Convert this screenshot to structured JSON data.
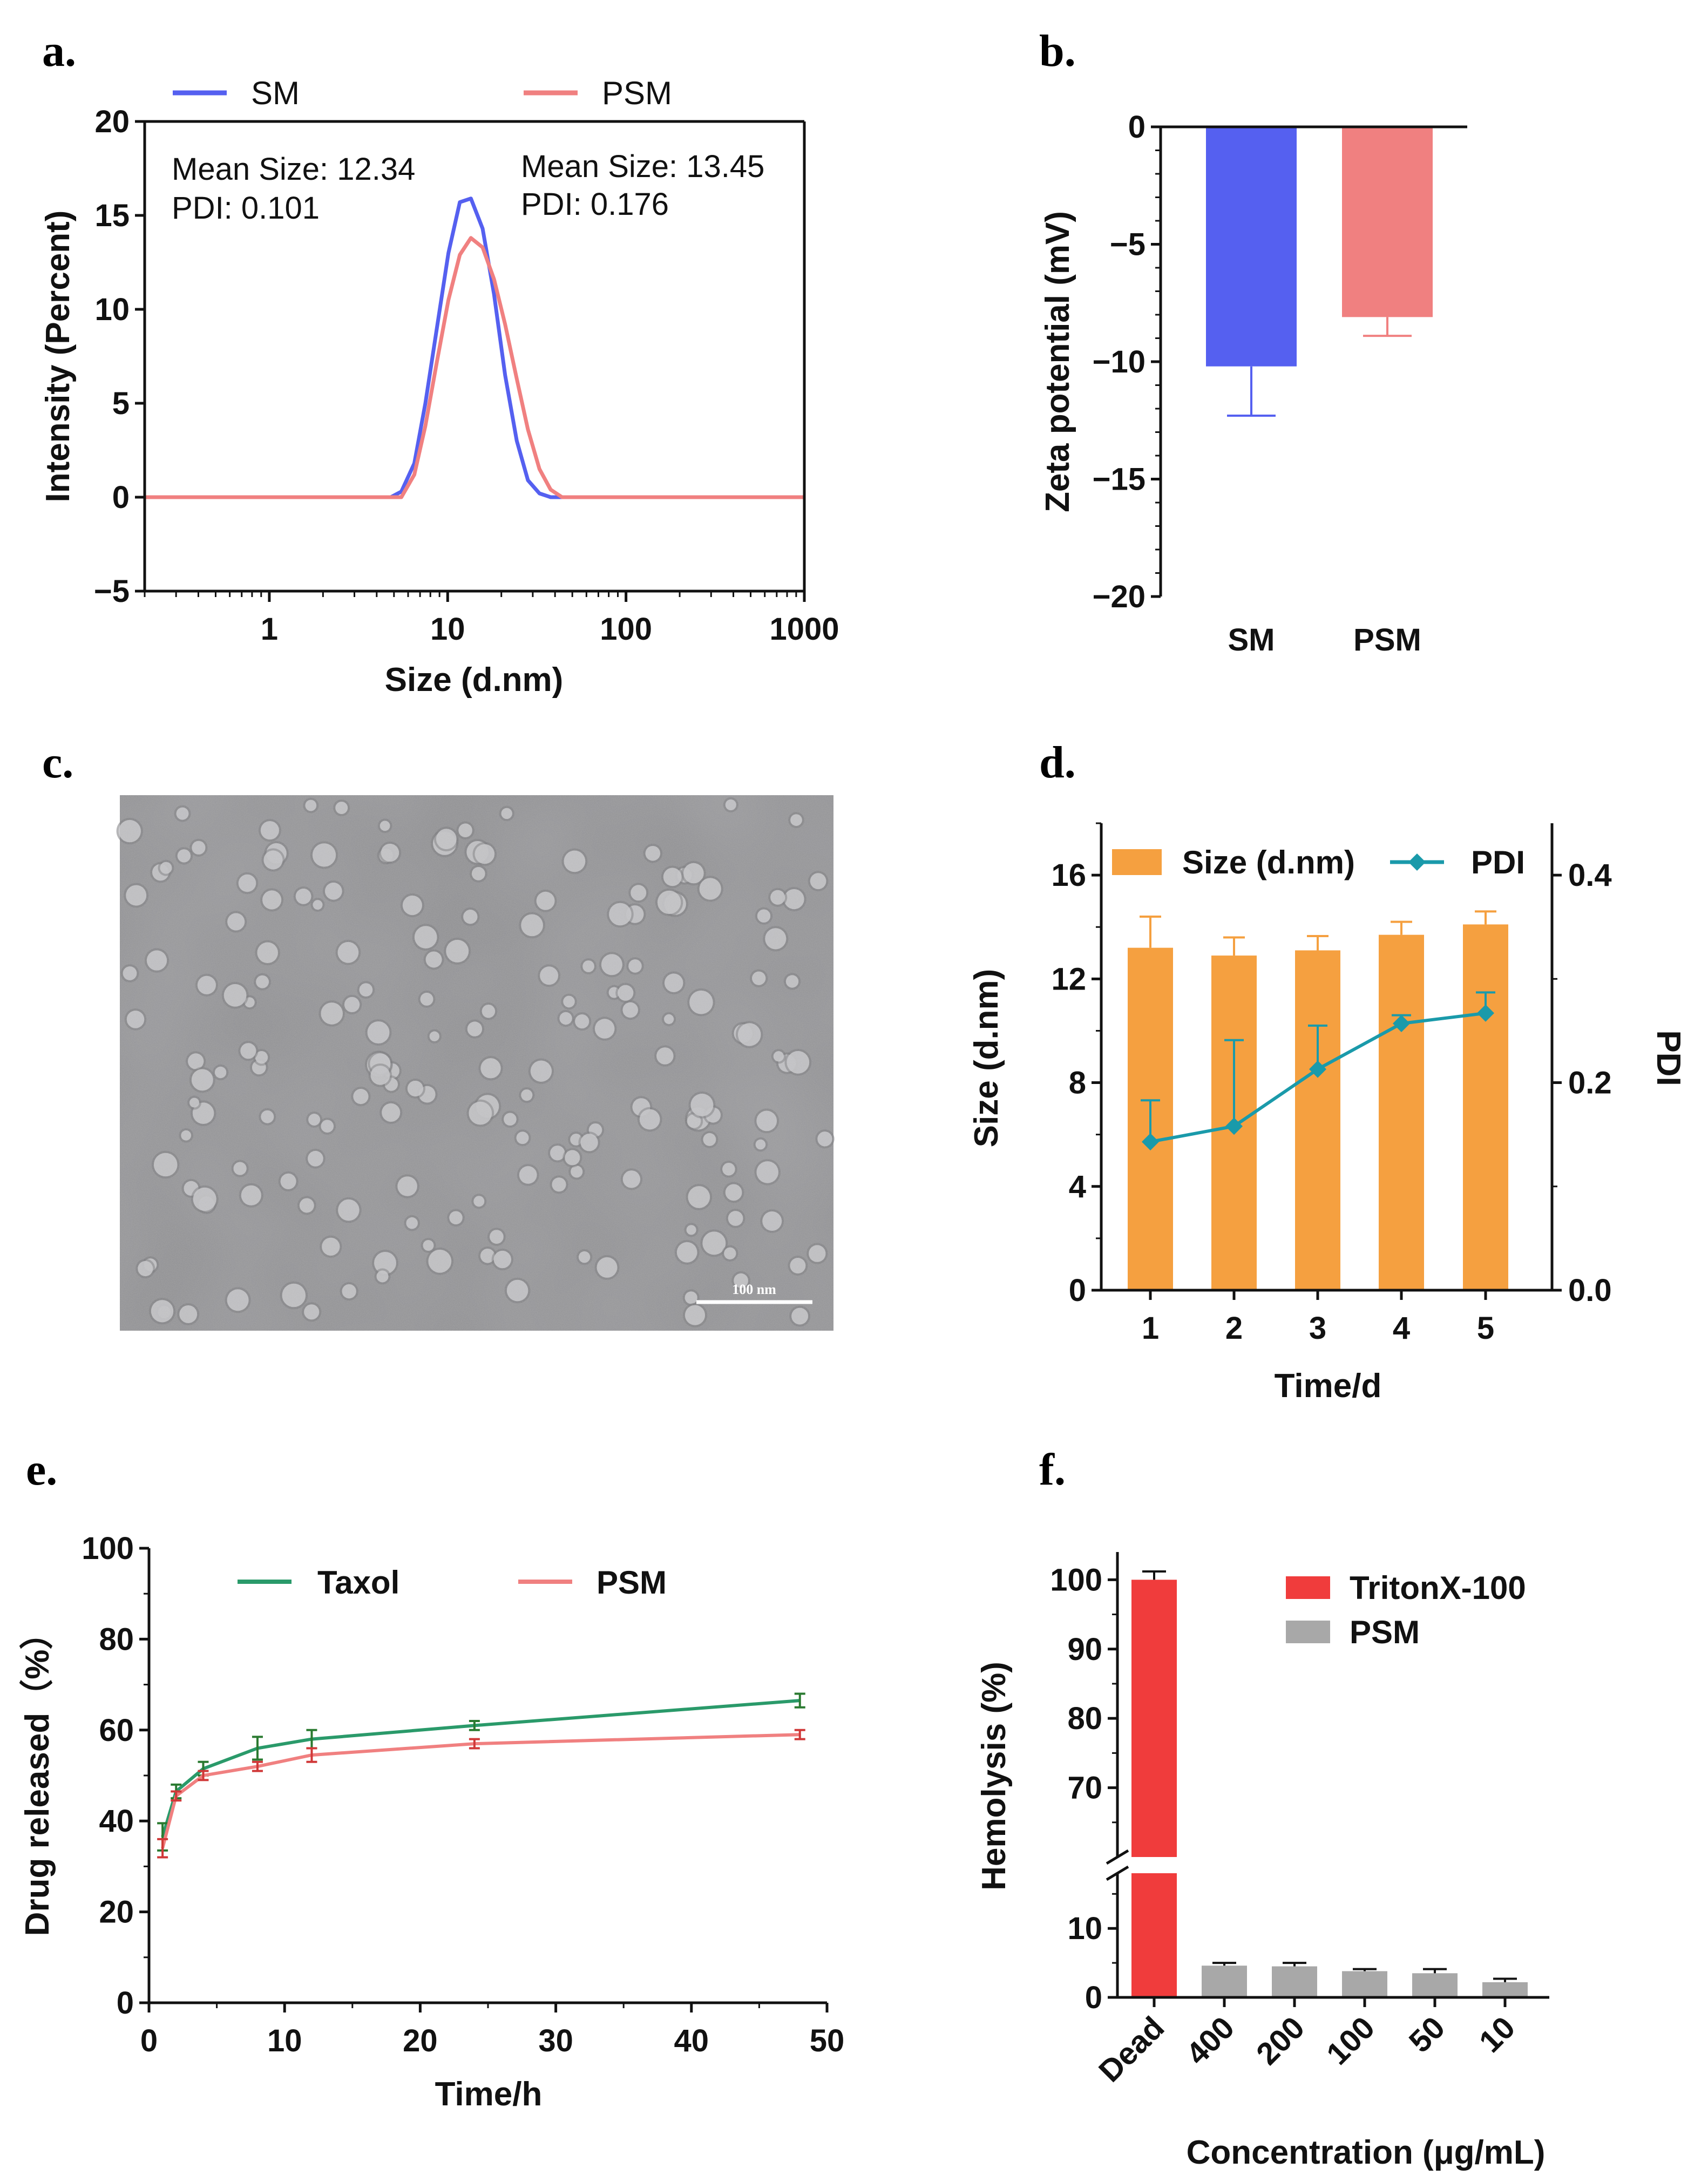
{
  "colors": {
    "sm_blue": "#5560f0",
    "psm_pink": "#f08080",
    "orange": "#f5a040",
    "teal": "#1a9aaa",
    "taxol_green": "#2a9a6a",
    "triton_red": "#f03c3c",
    "psm_gray": "#a8a8a8"
  },
  "chart_data": [
    {
      "id": "a",
      "panel_label": "a.",
      "type": "line",
      "xlabel": "Size (d.nm)",
      "ylabel": "Intensity (Percent)",
      "xscale": "log",
      "xlim": [
        0.2,
        1000
      ],
      "ylim": [
        -5,
        20
      ],
      "xticks": [
        1,
        10,
        100,
        1000
      ],
      "xtick_labels": [
        "1",
        "10",
        "100",
        "1000"
      ],
      "yticks": [
        -5,
        0,
        5,
        10,
        15,
        20
      ],
      "ytick_labels": [
        "−5",
        "0",
        "5",
        "10",
        "15",
        "20"
      ],
      "legend": [
        "SM",
        "PSM"
      ],
      "annotations": [
        {
          "text": "Mean Size: 12.34",
          "series": "SM"
        },
        {
          "text": "PDI: 0.101",
          "series": "SM"
        },
        {
          "text": "Mean Size: 13.45",
          "series": "PSM"
        },
        {
          "text": "PDI: 0.176",
          "series": "PSM"
        }
      ],
      "series": [
        {
          "name": "SM",
          "x": [
            0.2,
            4.8,
            5.5,
            6.5,
            7.5,
            8.7,
            10.1,
            11.7,
            13.5,
            15.7,
            18.2,
            21.0,
            24.4,
            28.2,
            32.7,
            37.8,
            1000
          ],
          "y": [
            0,
            0,
            0.3,
            1.8,
            5.0,
            9.0,
            13.0,
            15.7,
            15.9,
            14.3,
            10.8,
            6.5,
            3.0,
            0.9,
            0.2,
            0,
            0
          ]
        },
        {
          "name": "PSM",
          "x": [
            0.2,
            5.5,
            6.5,
            7.5,
            8.7,
            10.1,
            11.7,
            13.5,
            15.7,
            18.2,
            21.0,
            24.4,
            28.2,
            32.7,
            37.8,
            43.8,
            1000
          ],
          "y": [
            0,
            0,
            1.2,
            3.8,
            7.2,
            10.5,
            12.9,
            13.8,
            13.3,
            11.6,
            9.2,
            6.3,
            3.6,
            1.5,
            0.4,
            0,
            0
          ]
        }
      ]
    },
    {
      "id": "b",
      "panel_label": "b.",
      "type": "bar",
      "ylabel": "Zeta potential (mV)",
      "categories": [
        "SM",
        "PSM"
      ],
      "values": [
        -10.2,
        -8.1
      ],
      "errors": [
        2.1,
        0.8
      ],
      "ylim": [
        -20,
        0
      ],
      "yticks": [
        -20,
        -15,
        -10,
        -5,
        0
      ],
      "ytick_labels": [
        "−20",
        "−15",
        "−10",
        "−5",
        "0"
      ]
    },
    {
      "id": "d",
      "panel_label": "d.",
      "type": "bar",
      "xlabel": "Time/d",
      "ylabel": "Size (d.nm)",
      "y2label": "PDI",
      "categories": [
        "1",
        "2",
        "3",
        "4",
        "5"
      ],
      "ylim": [
        0,
        18
      ],
      "yticks": [
        0,
        4,
        8,
        12,
        16
      ],
      "ytick_labels": [
        "0",
        "4",
        "8",
        "12",
        "16"
      ],
      "y2lim": [
        0,
        0.45
      ],
      "y2ticks": [
        0,
        0.2,
        0.4
      ],
      "y2tick_labels": [
        "0.0",
        "0.2",
        "0.4"
      ],
      "legend": [
        "Size (d.nm)",
        "PDI"
      ],
      "series": [
        {
          "name": "Size (d.nm)",
          "kind": "bar",
          "axis": "left",
          "values": [
            13.2,
            12.9,
            13.1,
            13.7,
            14.1
          ],
          "errors": [
            1.2,
            0.7,
            0.55,
            0.5,
            0.5
          ]
        },
        {
          "name": "PDI",
          "kind": "line",
          "axis": "right",
          "values": [
            0.143,
            0.158,
            0.213,
            0.257,
            0.267
          ],
          "errors": [
            0.04,
            0.083,
            0.042,
            0.008,
            0.02
          ]
        }
      ]
    },
    {
      "id": "e",
      "panel_label": "e.",
      "type": "line",
      "xlabel": "Time/h",
      "ylabel": "Drug released（%）",
      "xlim": [
        0,
        50
      ],
      "ylim": [
        0,
        100
      ],
      "xticks": [
        0,
        10,
        20,
        30,
        40,
        50
      ],
      "xtick_labels": [
        "0",
        "10",
        "20",
        "30",
        "40",
        "50"
      ],
      "yticks": [
        0,
        20,
        40,
        60,
        80,
        100
      ],
      "ytick_labels": [
        "0",
        "20",
        "40",
        "60",
        "80",
        "100"
      ],
      "legend": [
        "Taxol",
        "PSM"
      ],
      "series": [
        {
          "name": "Taxol",
          "x": [
            1,
            2,
            4,
            8,
            12,
            24,
            48
          ],
          "y": [
            36.5,
            46.5,
            51.5,
            56,
            58,
            61,
            66.5
          ],
          "errors": [
            3,
            1.5,
            1.5,
            2.5,
            2,
            1,
            1.5
          ]
        },
        {
          "name": "PSM",
          "x": [
            1,
            2,
            4,
            8,
            12,
            24,
            48
          ],
          "y": [
            34,
            45.5,
            50,
            52,
            54.5,
            57,
            59
          ],
          "errors": [
            2,
            1,
            1,
            1,
            1.5,
            1,
            1
          ]
        }
      ]
    },
    {
      "id": "f",
      "panel_label": "f.",
      "type": "bar",
      "xlabel": "Concentration (μg/mL)",
      "ylabel": "Hemolysis (%)",
      "categories": [
        "Dead",
        "400",
        "200",
        "100",
        "50",
        "10"
      ],
      "axis_break": {
        "lower": [
          0,
          18
        ],
        "upper": [
          60,
          104
        ]
      },
      "yticks": [
        0,
        10,
        70,
        80,
        90,
        100
      ],
      "ytick_labels": [
        "0",
        "10",
        "70",
        "80",
        "90",
        "100"
      ],
      "legend": [
        "TritonX-100",
        "PSM"
      ],
      "series": [
        {
          "name": "TritonX-100",
          "values": [
            100,
            null,
            null,
            null,
            null,
            null
          ],
          "errors": [
            1.2,
            null,
            null,
            null,
            null,
            null
          ]
        },
        {
          "name": "PSM",
          "values": [
            null,
            4.6,
            4.5,
            3.8,
            3.5,
            2.2
          ],
          "errors": [
            null,
            0.4,
            0.5,
            0.3,
            0.6,
            0.5
          ]
        }
      ]
    }
  ],
  "micrograph": {
    "panel_label": "c.",
    "scale_bar_label": "100 nm"
  }
}
